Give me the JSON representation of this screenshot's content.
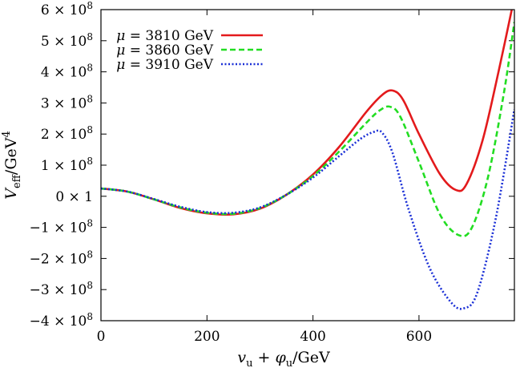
{
  "chart_data": {
    "type": "line",
    "title": "",
    "xlabel": {
      "main": "v",
      "sub1": "u",
      "plus": " + ",
      "main2": "φ",
      "sub2": "u",
      "unit": "/GeV"
    },
    "ylabel": {
      "main": "V",
      "sub": "eff",
      "unit": "/GeV",
      "sup": "4"
    },
    "xlim": [
      0,
      780
    ],
    "ylim": [
      -400000000,
      600000000
    ],
    "x_ticks": [
      {
        "value": 0,
        "label": "0"
      },
      {
        "value": 200,
        "label": "200"
      },
      {
        "value": 400,
        "label": "400"
      },
      {
        "value": 600,
        "label": "600"
      }
    ],
    "y_ticks": [
      {
        "value": 600000000,
        "label": "6 × 10",
        "exp": "8"
      },
      {
        "value": 500000000,
        "label": "5 × 10",
        "exp": "8"
      },
      {
        "value": 400000000,
        "label": "4 × 10",
        "exp": "8"
      },
      {
        "value": 300000000,
        "label": "3 × 10",
        "exp": "8"
      },
      {
        "value": 200000000,
        "label": "2 × 10",
        "exp": "8"
      },
      {
        "value": 100000000,
        "label": "1 × 10",
        "exp": "8"
      },
      {
        "value": 0,
        "label": "0 × 1",
        "exp": ""
      },
      {
        "value": -100000000,
        "label": "−1 × 10",
        "exp": "8"
      },
      {
        "value": -200000000,
        "label": "−2 × 10",
        "exp": "8"
      },
      {
        "value": -300000000,
        "label": "−3 × 10",
        "exp": "8"
      },
      {
        "value": -400000000,
        "label": "−4 × 10",
        "exp": "8"
      }
    ],
    "legend_position": "top-left",
    "grid": false,
    "series": [
      {
        "name": "μ = 3810 GeV",
        "color": "#e31a1c",
        "dash": "solid",
        "x": [
          0,
          50,
          100,
          150,
          200,
          250,
          300,
          350,
          400,
          450,
          500,
          530,
          550,
          570,
          600,
          640,
          670,
          690,
          720,
          750,
          780
        ],
        "y": [
          25000000,
          15000000,
          -10000000,
          -38000000,
          -55000000,
          -58000000,
          -40000000,
          5000000,
          70000000,
          160000000,
          270000000,
          325000000,
          340000000,
          310000000,
          200000000,
          70000000,
          20000000,
          40000000,
          180000000,
          400000000,
          640000000
        ]
      },
      {
        "name": "μ = 3860 GeV",
        "color": "#22dd22",
        "dash": "dashed",
        "x": [
          0,
          50,
          100,
          150,
          200,
          250,
          300,
          350,
          400,
          450,
          500,
          525,
          545,
          565,
          600,
          640,
          675,
          700,
          730,
          760,
          780
        ],
        "y": [
          25000000,
          15000000,
          -10000000,
          -36000000,
          -53000000,
          -56000000,
          -38000000,
          5000000,
          65000000,
          145000000,
          235000000,
          275000000,
          288000000,
          255000000,
          110000000,
          -60000000,
          -125000000,
          -100000000,
          60000000,
          330000000,
          560000000
        ]
      },
      {
        "name": "μ = 3910 GeV",
        "color": "#1a2fd6",
        "dash": "dotted",
        "x": [
          0,
          50,
          100,
          150,
          200,
          250,
          300,
          350,
          400,
          450,
          490,
          515,
          530,
          550,
          580,
          620,
          660,
          685,
          710,
          745,
          780
        ],
        "y": [
          25000000,
          15000000,
          -9000000,
          -34000000,
          -51000000,
          -53000000,
          -36000000,
          5000000,
          60000000,
          130000000,
          185000000,
          207000000,
          205000000,
          140000000,
          -40000000,
          -230000000,
          -340000000,
          -360000000,
          -310000000,
          -70000000,
          280000000
        ]
      }
    ]
  }
}
